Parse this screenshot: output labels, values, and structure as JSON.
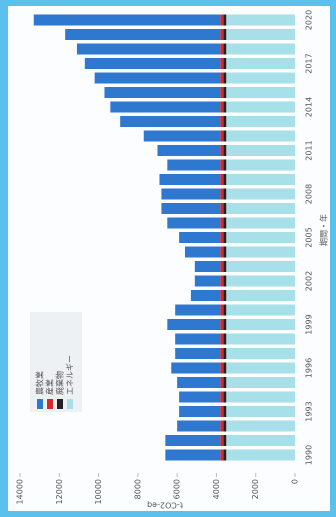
{
  "chart_data": {
    "type": "bar",
    "stacked": true,
    "x_label": "期間・年",
    "y_label": "t-CO2-eq",
    "categories": [
      "1990",
      null,
      null,
      "1993",
      null,
      null,
      "1996",
      null,
      null,
      "1999",
      null,
      null,
      "2002",
      null,
      null,
      "2005",
      null,
      null,
      "2008",
      null,
      null,
      "2011",
      null,
      null,
      "2014",
      null,
      null,
      "2017",
      null,
      null,
      "2020"
    ],
    "series": [
      {
        "name": "エネルギー",
        "color": "#a8e0ea",
        "values": [
          3500,
          3500,
          3500,
          3500,
          3500,
          3500,
          3500,
          3500,
          3500,
          3500,
          3500,
          3500,
          3500,
          3500,
          3500,
          3500,
          3500,
          3500,
          3500,
          3500,
          3500,
          3500,
          3500,
          3500,
          3500,
          3500,
          3500,
          3500,
          3500,
          3500,
          3500
        ]
      },
      {
        "name": "廃棄物",
        "color": "#222222",
        "values": [
          150,
          150,
          150,
          150,
          150,
          150,
          150,
          150,
          150,
          150,
          150,
          150,
          150,
          150,
          150,
          150,
          150,
          150,
          150,
          150,
          150,
          150,
          150,
          150,
          150,
          150,
          150,
          150,
          150,
          150,
          150
        ]
      },
      {
        "name": "産業",
        "color": "#d62a2a",
        "values": [
          150,
          150,
          150,
          150,
          150,
          150,
          150,
          150,
          150,
          150,
          150,
          150,
          150,
          150,
          150,
          150,
          150,
          150,
          150,
          150,
          150,
          150,
          150,
          150,
          150,
          150,
          150,
          150,
          150,
          150,
          150
        ]
      },
      {
        "name": "農牧業",
        "color": "#2f78d0",
        "values": [
          2800,
          2800,
          2200,
          2100,
          2100,
          2200,
          2500,
          2300,
          2300,
          2700,
          2300,
          1500,
          1300,
          1300,
          1800,
          2100,
          2700,
          3000,
          3000,
          3100,
          2700,
          3200,
          3900,
          5100,
          5600,
          5900,
          6400,
          6900,
          7300,
          7900,
          9500
        ]
      }
    ],
    "ylim": [
      0,
      14000
    ],
    "yticks": [
      0,
      2000,
      4000,
      6000,
      8000,
      10000,
      12000,
      14000
    ],
    "legend": "upper left"
  }
}
